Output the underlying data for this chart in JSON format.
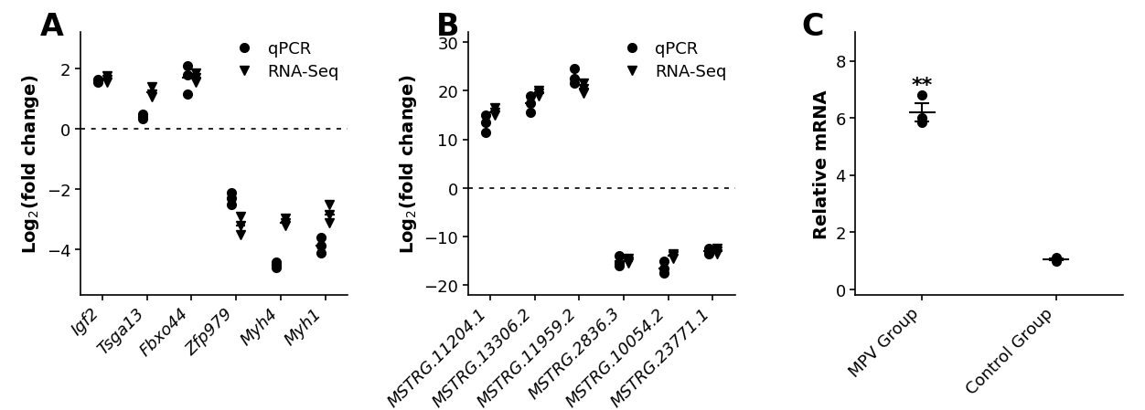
{
  "panel_A": {
    "categories": [
      "Igf2",
      "Tsga13",
      "Fbxo44",
      "Zfp979",
      "Myh4",
      "Myh1"
    ],
    "qpcr_points": [
      [
        1.55,
        1.6,
        1.65
      ],
      [
        0.35,
        0.4,
        0.48
      ],
      [
        1.15,
        1.8,
        2.1
      ],
      [
        -2.1,
        -2.3,
        -2.5
      ],
      [
        -4.4,
        -4.5,
        -4.6
      ],
      [
        -3.6,
        -3.85,
        -4.1
      ]
    ],
    "rnaseq_points": [
      [
        1.55,
        1.65,
        1.75
      ],
      [
        1.05,
        1.15,
        1.4
      ],
      [
        1.55,
        1.7,
        1.85
      ],
      [
        -2.9,
        -3.2,
        -3.5
      ],
      [
        -2.95,
        -3.1,
        -3.2
      ],
      [
        -2.5,
        -2.85,
        -3.1
      ]
    ],
    "qpcr_means": [
      1.6,
      0.4,
      1.7,
      -2.3,
      -4.5,
      -3.85
    ],
    "rnaseq_means": [
      1.65,
      1.2,
      1.7,
      -3.2,
      -3.1,
      -2.85
    ],
    "ylim": [
      -5.5,
      3.2
    ],
    "yticks": [
      -4,
      -2,
      0,
      2
    ],
    "ylabel": "Log$_2$(fold change)",
    "title": "A"
  },
  "panel_B": {
    "categories": [
      "MSTRG.11204.1",
      "MSTRG.13306.2",
      "MSTRG.11959.2",
      "MSTRG.2836.3",
      "MSTRG.10054.2",
      "MSTRG.23771.1"
    ],
    "qpcr_points": [
      [
        11.5,
        13.5,
        15.0
      ],
      [
        15.5,
        17.5,
        19.0
      ],
      [
        21.5,
        22.5,
        24.5
      ],
      [
        -16.0,
        -15.5,
        -14.0
      ],
      [
        -17.5,
        -16.5,
        -15.0
      ],
      [
        -13.5,
        -13.0,
        -12.5
      ]
    ],
    "rnaseq_points": [
      [
        15.0,
        15.5,
        16.5
      ],
      [
        19.0,
        19.5,
        20.0
      ],
      [
        19.5,
        20.5,
        21.5
      ],
      [
        -14.5,
        -15.0,
        -15.5
      ],
      [
        -13.5,
        -14.0,
        -14.5
      ],
      [
        -12.5,
        -13.0,
        -13.5
      ]
    ],
    "qpcr_means": [
      13.5,
      17.5,
      22.5,
      -15.0,
      -16.5,
      -13.0
    ],
    "rnaseq_means": [
      15.5,
      19.5,
      20.5,
      -15.0,
      -14.0,
      -13.0
    ],
    "ylim": [
      -22,
      32
    ],
    "yticks": [
      -20,
      -10,
      0,
      10,
      20,
      30
    ],
    "ylabel": "Log$_2$(fold change)",
    "title": "B"
  },
  "panel_C": {
    "categories": [
      "MPV Group",
      "Control Group"
    ],
    "mpv_points": [
      5.85,
      6.0,
      6.8
    ],
    "mpv_mean": 6.2,
    "mpv_sem": 0.32,
    "control_points": [
      1.0,
      1.1
    ],
    "control_mean": 1.05,
    "control_sem": 0.03,
    "ylim": [
      -0.2,
      9
    ],
    "yticks": [
      0,
      2,
      4,
      6,
      8
    ],
    "ylabel": "Relative mRNA",
    "title": "C",
    "significance": "**"
  },
  "legend_qpcr_label": "qPCR",
  "legend_rnaseq_label": "RNA-Seq",
  "color": "#000000",
  "bg_color": "#ffffff",
  "marker_size": 7,
  "mean_lw": 1.5,
  "mean_hw": 0.09,
  "tick_fontsize": 13,
  "label_fontsize": 14,
  "legend_fontsize": 13,
  "title_fontsize": 24,
  "spine_lw": 1.2
}
